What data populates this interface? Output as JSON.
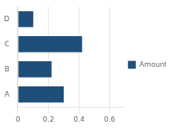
{
  "chart_data": {
    "type": "bar",
    "orientation": "horizontal",
    "categories": [
      "A",
      "B",
      "C",
      "D"
    ],
    "series": [
      {
        "name": "Amount",
        "color": "#1F4E79",
        "values": [
          0.3,
          0.22,
          0.42,
          0.1
        ]
      }
    ],
    "xlim": [
      0,
      0.7
    ],
    "xticks": [
      0,
      0.2,
      0.4,
      0.6
    ],
    "grid": true,
    "legend": "right"
  }
}
